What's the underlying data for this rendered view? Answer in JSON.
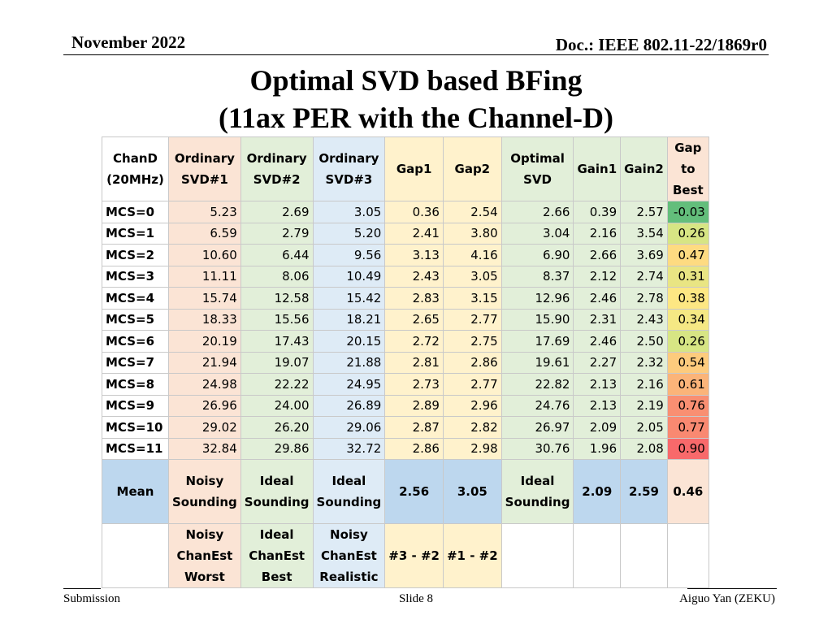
{
  "header": {
    "date": "November 2022",
    "doc": "Doc.: IEEE 802.11-22/1869r0"
  },
  "title": {
    "line1": "Optimal SVD based BFing",
    "line2": "(11ax PER with the Channel-D)"
  },
  "footer": {
    "left": "Submission",
    "center": "Slide 8",
    "right": "Aiguo Yan (ZEKU)"
  },
  "table": {
    "columns": [
      [
        "ChanD",
        "(20MHz)"
      ],
      [
        "Ordinary",
        "SVD#1"
      ],
      [
        "Ordinary",
        "SVD#2"
      ],
      [
        "Ordinary",
        "SVD#3"
      ],
      [
        "Gap1"
      ],
      [
        "Gap2"
      ],
      [
        "Optimal",
        "SVD"
      ],
      [
        "Gain1"
      ],
      [
        "Gain2"
      ],
      [
        "Gap",
        "to",
        "Best"
      ]
    ],
    "rows": [
      {
        "label": "MCS=0",
        "values": [
          "5.23",
          "2.69",
          "3.05",
          "0.36",
          "2.54",
          "2.66",
          "0.39",
          "2.57",
          "-0.03"
        ],
        "best_color": "#63be7b"
      },
      {
        "label": "MCS=1",
        "values": [
          "6.59",
          "2.79",
          "5.20",
          "2.41",
          "3.80",
          "3.04",
          "2.16",
          "3.54",
          "0.26"
        ],
        "best_color": "#d7e584"
      },
      {
        "label": "MCS=2",
        "values": [
          "10.60",
          "6.44",
          "9.56",
          "3.13",
          "4.16",
          "6.90",
          "2.66",
          "3.69",
          "0.47"
        ],
        "best_color": "#fedb81"
      },
      {
        "label": "MCS=3",
        "values": [
          "11.11",
          "8.06",
          "10.49",
          "2.43",
          "3.05",
          "8.37",
          "2.12",
          "2.74",
          "0.31"
        ],
        "best_color": "#e9e583"
      },
      {
        "label": "MCS=4",
        "values": [
          "15.74",
          "12.58",
          "15.42",
          "2.83",
          "3.15",
          "12.96",
          "2.46",
          "2.78",
          "0.38"
        ],
        "best_color": "#fde783"
      },
      {
        "label": "MCS=5",
        "values": [
          "18.33",
          "15.56",
          "18.21",
          "2.65",
          "2.77",
          "15.90",
          "2.31",
          "2.43",
          "0.34"
        ],
        "best_color": "#f5e884"
      },
      {
        "label": "MCS=6",
        "values": [
          "20.19",
          "17.43",
          "20.15",
          "2.72",
          "2.75",
          "17.69",
          "2.46",
          "2.50",
          "0.26"
        ],
        "best_color": "#d7e584"
      },
      {
        "label": "MCS=7",
        "values": [
          "21.94",
          "19.07",
          "21.88",
          "2.81",
          "2.86",
          "19.61",
          "2.27",
          "2.32",
          "0.54"
        ],
        "best_color": "#fdcb7d"
      },
      {
        "label": "MCS=8",
        "values": [
          "24.98",
          "22.22",
          "24.95",
          "2.73",
          "2.77",
          "22.82",
          "2.13",
          "2.16",
          "0.61"
        ],
        "best_color": "#fbb479"
      },
      {
        "label": "MCS=9",
        "values": [
          "26.96",
          "24.00",
          "26.89",
          "2.89",
          "2.96",
          "24.76",
          "2.13",
          "2.19",
          "0.76"
        ],
        "best_color": "#f98f72"
      },
      {
        "label": "MCS=10",
        "values": [
          "29.02",
          "26.20",
          "29.06",
          "2.87",
          "2.82",
          "26.97",
          "2.09",
          "2.05",
          "0.77"
        ],
        "best_color": "#f98971"
      },
      {
        "label": "MCS=11",
        "values": [
          "32.84",
          "29.86",
          "32.72",
          "2.86",
          "2.98",
          "30.76",
          "1.96",
          "2.08",
          "0.90"
        ],
        "best_color": "#f8696b"
      }
    ],
    "mean": {
      "label": "Mean",
      "cells": [
        [
          "Noisy",
          "Sounding"
        ],
        [
          "Ideal",
          "Sounding"
        ],
        [
          "Ideal",
          "Sounding"
        ],
        [
          "2.56"
        ],
        [
          "3.05"
        ],
        [
          "Ideal",
          "Sounding"
        ],
        [
          "2.09"
        ],
        [
          "2.59"
        ],
        [
          "0.46"
        ]
      ]
    },
    "legend": {
      "cells": [
        [
          "Noisy",
          "ChanEst",
          "Worst"
        ],
        [
          "Ideal",
          "ChanEst",
          "Best"
        ],
        [
          "Noisy",
          "ChanEst",
          "Realistic"
        ],
        [
          "#3 - #2"
        ],
        [
          "#1 - #2"
        ]
      ]
    }
  }
}
